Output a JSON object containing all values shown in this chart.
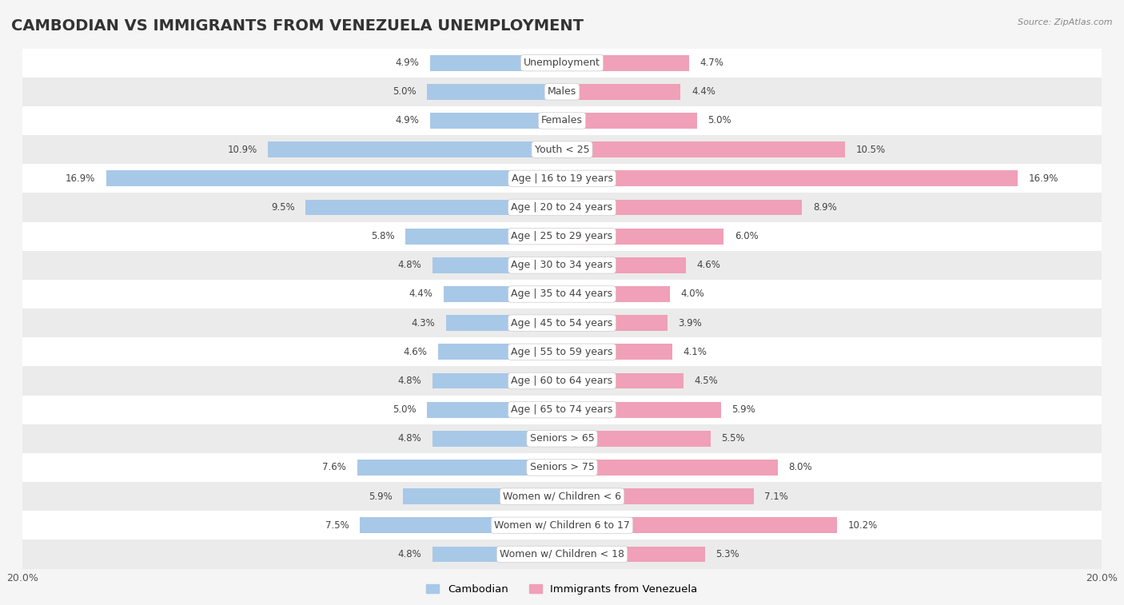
{
  "title": "CAMBODIAN VS IMMIGRANTS FROM VENEZUELA UNEMPLOYMENT",
  "source": "Source: ZipAtlas.com",
  "categories": [
    "Unemployment",
    "Males",
    "Females",
    "Youth < 25",
    "Age | 16 to 19 years",
    "Age | 20 to 24 years",
    "Age | 25 to 29 years",
    "Age | 30 to 34 years",
    "Age | 35 to 44 years",
    "Age | 45 to 54 years",
    "Age | 55 to 59 years",
    "Age | 60 to 64 years",
    "Age | 65 to 74 years",
    "Seniors > 65",
    "Seniors > 75",
    "Women w/ Children < 6",
    "Women w/ Children 6 to 17",
    "Women w/ Children < 18"
  ],
  "cambodian": [
    4.9,
    5.0,
    4.9,
    10.9,
    16.9,
    9.5,
    5.8,
    4.8,
    4.4,
    4.3,
    4.6,
    4.8,
    5.0,
    4.8,
    7.6,
    5.9,
    7.5,
    4.8
  ],
  "venezuela": [
    4.7,
    4.4,
    5.0,
    10.5,
    16.9,
    8.9,
    6.0,
    4.6,
    4.0,
    3.9,
    4.1,
    4.5,
    5.9,
    5.5,
    8.0,
    7.1,
    10.2,
    5.3
  ],
  "cambodian_color": "#a8c8e8",
  "venezuela_color": "#f0a0b8",
  "cambodian_dark_color": "#6090c0",
  "venezuela_dark_color": "#e06080",
  "bar_height": 0.55,
  "xlim": 20.0,
  "bg_color": "#f5f5f5",
  "row_color_odd": "#ffffff",
  "row_color_even": "#ebebeb",
  "title_fontsize": 14,
  "label_fontsize": 9,
  "tick_fontsize": 9,
  "value_fontsize": 8.5
}
